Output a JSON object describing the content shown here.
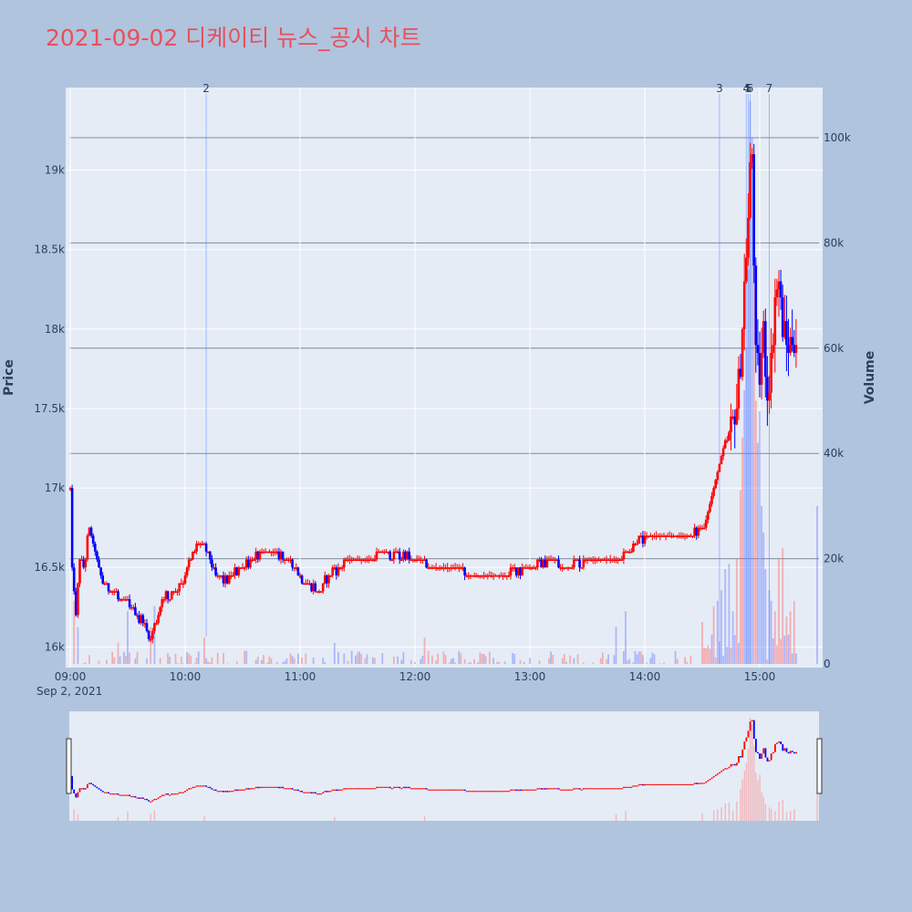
{
  "chart_title": "2021-09-02 디케이티 뉴스_공시 차트",
  "chart_data": {
    "type": "candlestick",
    "ylabel": "Price",
    "y2label": "Volume",
    "xdate_label": "Sep 2, 2021",
    "price_range": [
      15870,
      19520
    ],
    "volume_range": [
      0,
      109000
    ],
    "price_ticks": [
      {
        "v": 16000,
        "label": "16k"
      },
      {
        "v": 16500,
        "label": "16.5k"
      },
      {
        "v": 17000,
        "label": "17k"
      },
      {
        "v": 17500,
        "label": "17.5k"
      },
      {
        "v": 18000,
        "label": "18k"
      },
      {
        "v": 18500,
        "label": "18.5k"
      },
      {
        "v": 19000,
        "label": "19k"
      }
    ],
    "volume_ticks": [
      {
        "v": 0,
        "label": "0"
      },
      {
        "v": 20000,
        "label": "20k"
      },
      {
        "v": 40000,
        "label": "40k"
      },
      {
        "v": 60000,
        "label": "60k"
      },
      {
        "v": 80000,
        "label": "80k"
      },
      {
        "v": 100000,
        "label": "100k"
      }
    ],
    "time_ticks": [
      {
        "t": "09:00",
        "label": "09:00"
      },
      {
        "t": "10:00",
        "label": "10:00"
      },
      {
        "t": "11:00",
        "label": "11:00"
      },
      {
        "t": "12:00",
        "label": "12:00"
      },
      {
        "t": "13:00",
        "label": "13:00"
      },
      {
        "t": "14:00",
        "label": "14:00"
      },
      {
        "t": "15:00",
        "label": "15:00"
      }
    ],
    "events": [
      {
        "label": "2",
        "t": "10:11"
      },
      {
        "label": "3",
        "t": "14:39"
      },
      {
        "label": "4",
        "t": "14:53"
      },
      {
        "label": "5",
        "t": "14:54"
      },
      {
        "label": "6",
        "t": "14:55"
      },
      {
        "label": "7",
        "t": "15:05"
      }
    ],
    "up_color": "#ff0000",
    "down_color": "#0000ff",
    "price_keyframes": [
      [
        "09:00",
        17000
      ],
      [
        "09:01",
        16500
      ],
      [
        "09:03",
        16200
      ],
      [
        "09:05",
        16550
      ],
      [
        "09:07",
        16500
      ],
      [
        "09:10",
        16750
      ],
      [
        "09:13",
        16600
      ],
      [
        "09:17",
        16400
      ],
      [
        "09:22",
        16350
      ],
      [
        "09:27",
        16300
      ],
      [
        "09:32",
        16250
      ],
      [
        "09:38",
        16150
      ],
      [
        "09:42",
        16050
      ],
      [
        "09:48",
        16300
      ],
      [
        "09:55",
        16350
      ],
      [
        "10:00",
        16450
      ],
      [
        "10:04",
        16600
      ],
      [
        "10:08",
        16650
      ],
      [
        "10:12",
        16600
      ],
      [
        "10:16",
        16450
      ],
      [
        "10:22",
        16400
      ],
      [
        "10:28",
        16500
      ],
      [
        "10:35",
        16550
      ],
      [
        "10:45",
        16600
      ],
      [
        "10:55",
        16550
      ],
      [
        "11:00",
        16450
      ],
      [
        "11:05",
        16400
      ],
      [
        "11:10",
        16350
      ],
      [
        "11:15",
        16450
      ],
      [
        "11:25",
        16550
      ],
      [
        "11:35",
        16550
      ],
      [
        "11:45",
        16600
      ],
      [
        "12:00",
        16550
      ],
      [
        "12:10",
        16500
      ],
      [
        "12:20",
        16500
      ],
      [
        "12:30",
        16450
      ],
      [
        "12:45",
        16450
      ],
      [
        "13:00",
        16500
      ],
      [
        "13:10",
        16550
      ],
      [
        "13:20",
        16500
      ],
      [
        "13:30",
        16550
      ],
      [
        "13:45",
        16550
      ],
      [
        "13:55",
        16650
      ],
      [
        "14:05",
        16700
      ],
      [
        "14:15",
        16700
      ],
      [
        "14:25",
        16700
      ],
      [
        "14:30",
        16750
      ],
      [
        "14:35",
        16950
      ],
      [
        "14:40",
        17200
      ],
      [
        "14:45",
        17350
      ],
      [
        "14:48",
        17550
      ],
      [
        "14:50",
        17800
      ],
      [
        "14:52",
        18300
      ],
      [
        "14:54",
        18700
      ],
      [
        "14:55",
        19000
      ],
      [
        "14:56",
        19100
      ],
      [
        "14:58",
        17800
      ],
      [
        "15:00",
        17700
      ],
      [
        "15:02",
        18000
      ],
      [
        "15:04",
        17600
      ],
      [
        "15:06",
        17800
      ],
      [
        "15:08",
        18200
      ],
      [
        "15:10",
        18300
      ],
      [
        "15:12",
        18000
      ],
      [
        "15:14",
        17900
      ],
      [
        "15:19",
        17950
      ]
    ],
    "volume_spikes": [
      [
        "09:02",
        12000
      ],
      [
        "09:04",
        7000
      ],
      [
        "09:25",
        4000
      ],
      [
        "09:30",
        10000
      ],
      [
        "09:42",
        7000
      ],
      [
        "09:44",
        11000
      ],
      [
        "10:10",
        5000
      ],
      [
        "11:18",
        4000
      ],
      [
        "12:05",
        5000
      ],
      [
        "13:45",
        7000
      ],
      [
        "13:50",
        10000
      ],
      [
        "14:30",
        8000
      ],
      [
        "14:36",
        11000
      ],
      [
        "14:38",
        12000
      ],
      [
        "14:40",
        14000
      ],
      [
        "14:42",
        18000
      ],
      [
        "14:44",
        19000
      ],
      [
        "14:46",
        10000
      ],
      [
        "14:48",
        20000
      ],
      [
        "14:50",
        33000
      ],
      [
        "14:51",
        43000
      ],
      [
        "14:52",
        52000
      ],
      [
        "14:53",
        60000
      ],
      [
        "14:54",
        75000
      ],
      [
        "14:55",
        107000
      ],
      [
        "14:56",
        100000
      ],
      [
        "14:57",
        78000
      ],
      [
        "14:58",
        50000
      ],
      [
        "14:59",
        42000
      ],
      [
        "15:00",
        48000
      ],
      [
        "15:01",
        30000
      ],
      [
        "15:02",
        25000
      ],
      [
        "15:03",
        18000
      ],
      [
        "15:05",
        14000
      ],
      [
        "15:06",
        12000
      ],
      [
        "15:08",
        10000
      ],
      [
        "15:10",
        20000
      ],
      [
        "15:12",
        22000
      ],
      [
        "15:14",
        9000
      ],
      [
        "15:16",
        10000
      ],
      [
        "15:18",
        12000
      ],
      [
        "15:30",
        30000
      ]
    ]
  }
}
